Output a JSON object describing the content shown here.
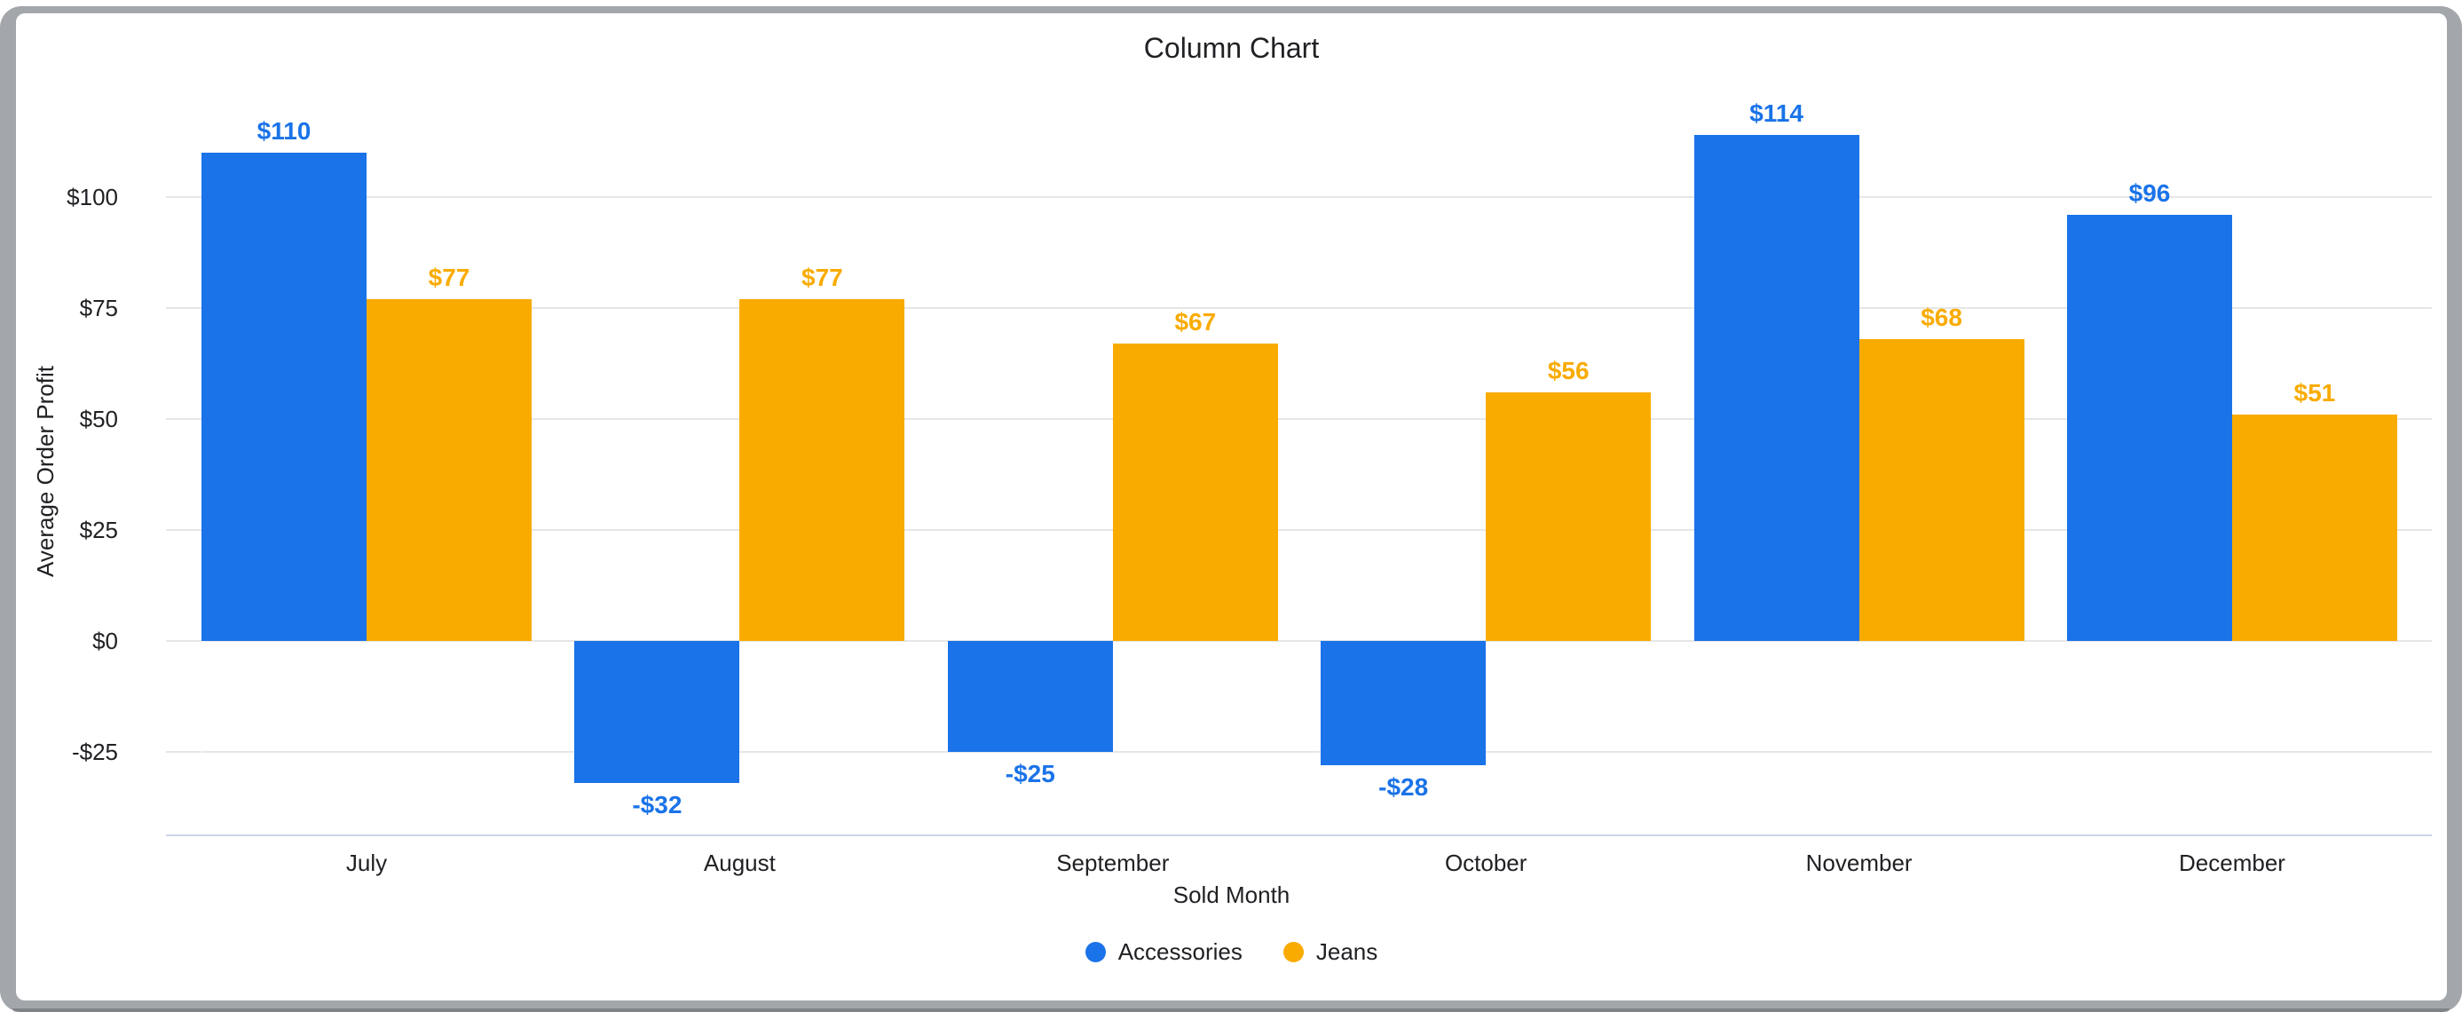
{
  "window": {
    "frame_color": "#a3a7ab",
    "card_color": "#ffffff",
    "gridline_color": "#e6e6e6",
    "axis_line_color": "#c9d4e8"
  },
  "chart_data": {
    "type": "bar",
    "title": "Column Chart",
    "xlabel": "Sold Month",
    "ylabel": "Average Order Profit",
    "categories": [
      "July",
      "August",
      "September",
      "October",
      "November",
      "December"
    ],
    "series": [
      {
        "name": "Accessories",
        "color": "#1a73e8",
        "values": [
          110,
          -32,
          -25,
          -28,
          114,
          96
        ],
        "labels": [
          "$110",
          "-$32",
          "-$25",
          "-$28",
          "$114",
          "$96"
        ]
      },
      {
        "name": "Jeans",
        "color": "#f9ab00",
        "values": [
          77,
          77,
          67,
          56,
          68,
          51
        ],
        "labels": [
          "$77",
          "$77",
          "$67",
          "$56",
          "$68",
          "$51"
        ]
      }
    ],
    "y_ticks": [
      {
        "label": "$100",
        "value": 100
      },
      {
        "label": "$75",
        "value": 75
      },
      {
        "label": "$50",
        "value": 50
      },
      {
        "label": "$25",
        "value": 25
      },
      {
        "label": "$0",
        "value": 0
      },
      {
        "label": "-$25",
        "value": -25
      }
    ],
    "ylim": [
      -44,
      112
    ],
    "grid": true,
    "data_labels": true,
    "legend_position": "bottom"
  }
}
